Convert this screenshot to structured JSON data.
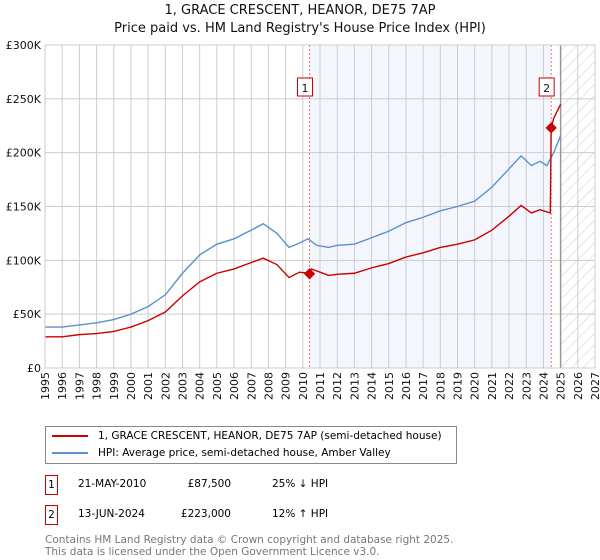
{
  "chart_data": {
    "type": "line",
    "title": "1, GRACE CRESCENT, HEANOR, DE75 7AP",
    "subtitle": "Price paid vs. HM Land Registry's House Price Index (HPI)",
    "xlim": [
      1995,
      2027
    ],
    "ylim": [
      0,
      300000
    ],
    "x_ticks": [
      "1995",
      "1996",
      "1997",
      "1998",
      "1999",
      "2000",
      "2001",
      "2002",
      "2003",
      "2004",
      "2005",
      "2006",
      "2007",
      "2008",
      "2009",
      "2010",
      "2011",
      "2012",
      "2013",
      "2014",
      "2015",
      "2016",
      "2017",
      "2018",
      "2019",
      "2020",
      "2021",
      "2022",
      "2023",
      "2024",
      "2025",
      "2026",
      "2027"
    ],
    "y_ticks": [
      {
        "v": 0,
        "label": "£0"
      },
      {
        "v": 50000,
        "label": "£50K"
      },
      {
        "v": 100000,
        "label": "£100K"
      },
      {
        "v": 150000,
        "label": "£150K"
      },
      {
        "v": 200000,
        "label": "£200K"
      },
      {
        "v": 250000,
        "label": "£250K"
      },
      {
        "v": 300000,
        "label": "£300K"
      }
    ],
    "grid": true,
    "forecast_start": 2025.0,
    "series": [
      {
        "name": "1, GRACE CRESCENT, HEANOR, DE75 7AP (semi-detached house)",
        "color": "#cc0000",
        "points": [
          [
            1995,
            29
          ],
          [
            1996,
            29
          ],
          [
            1997,
            31
          ],
          [
            1998,
            32
          ],
          [
            1999,
            34
          ],
          [
            2000,
            38
          ],
          [
            2001,
            44
          ],
          [
            2002,
            52
          ],
          [
            2003,
            67
          ],
          [
            2004,
            80
          ],
          [
            2005,
            88
          ],
          [
            2006,
            92
          ],
          [
            2007,
            98
          ],
          [
            2007.7,
            102
          ],
          [
            2008.5,
            96
          ],
          [
            2009.2,
            84
          ],
          [
            2009.8,
            89
          ],
          [
            2010.3,
            88
          ],
          [
            2010.5,
            92
          ],
          [
            2011.5,
            86
          ],
          [
            2012,
            87
          ],
          [
            2013,
            88
          ],
          [
            2014,
            93
          ],
          [
            2015,
            97
          ],
          [
            2016,
            103
          ],
          [
            2017,
            107
          ],
          [
            2018,
            112
          ],
          [
            2019,
            115
          ],
          [
            2020,
            119
          ],
          [
            2021,
            128
          ],
          [
            2022,
            141
          ],
          [
            2022.7,
            151
          ],
          [
            2023.3,
            144
          ],
          [
            2023.8,
            147
          ],
          [
            2024.4,
            144
          ],
          [
            2024.45,
            223
          ],
          [
            2024.6,
            232
          ],
          [
            2025.0,
            245
          ]
        ]
      },
      {
        "name": "HPI: Average price, semi-detached house, Amber Valley",
        "color": "#5b8fd0",
        "points": [
          [
            1995,
            38
          ],
          [
            1996,
            38
          ],
          [
            1997,
            40
          ],
          [
            1998,
            42
          ],
          [
            1999,
            45
          ],
          [
            2000,
            50
          ],
          [
            2001,
            57
          ],
          [
            2002,
            68
          ],
          [
            2003,
            88
          ],
          [
            2004,
            105
          ],
          [
            2005,
            115
          ],
          [
            2006,
            120
          ],
          [
            2007,
            128
          ],
          [
            2007.7,
            134
          ],
          [
            2008.5,
            125
          ],
          [
            2009.2,
            112
          ],
          [
            2009.8,
            116
          ],
          [
            2010.3,
            120
          ],
          [
            2010.8,
            114
          ],
          [
            2011.5,
            112
          ],
          [
            2012,
            114
          ],
          [
            2013,
            115
          ],
          [
            2014,
            121
          ],
          [
            2015,
            127
          ],
          [
            2016,
            135
          ],
          [
            2017,
            140
          ],
          [
            2018,
            146
          ],
          [
            2019,
            150
          ],
          [
            2020,
            155
          ],
          [
            2021,
            168
          ],
          [
            2022,
            185
          ],
          [
            2022.7,
            197
          ],
          [
            2023.3,
            188
          ],
          [
            2023.8,
            192
          ],
          [
            2024.2,
            188
          ],
          [
            2024.6,
            200
          ],
          [
            2025.0,
            216
          ]
        ]
      }
    ],
    "sales": [
      {
        "label": "1",
        "year": 2010.39,
        "price": 87500,
        "date": "21-MAY-2010",
        "price_text": "£87,500",
        "hpi_text": "25% ↓ HPI"
      },
      {
        "label": "2",
        "year": 2024.45,
        "price": 223000,
        "date": "13-JUN-2024",
        "price_text": "£223,000",
        "hpi_text": "12% ↑ HPI"
      }
    ]
  },
  "footer": {
    "line1": "Contains HM Land Registry data © Crown copyright and database right 2025.",
    "line2": "This data is licensed under the Open Government Licence v3.0."
  }
}
